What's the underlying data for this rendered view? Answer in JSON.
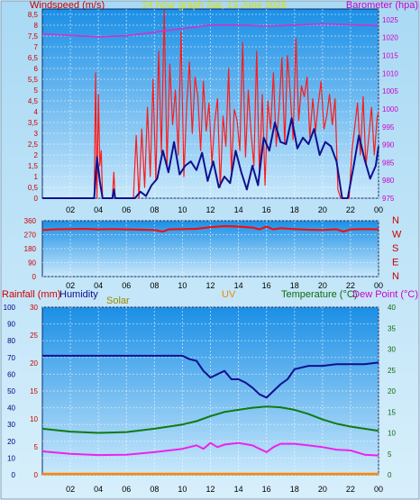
{
  "chart_data": [
    {
      "type": "line",
      "title": "24 hour graph Sat, 13 June 2026",
      "ylabel_left": "Windspeed (m/s)",
      "ylabel_right": "Barometer (hpa)",
      "x_ticks": [
        "02",
        "04",
        "06",
        "08",
        "10",
        "12",
        "14",
        "16",
        "18",
        "20",
        "22",
        "00"
      ],
      "y_left_ticks": [
        "0",
        "0,5",
        "1",
        "1,5",
        "2",
        "2,5",
        "3",
        "3,5",
        "4",
        "4,5",
        "5",
        "5,5",
        "6",
        "6,5",
        "7",
        "7,5",
        "8",
        "8,5"
      ],
      "y_right_ticks": [
        "975",
        "980",
        "985",
        "990",
        "995",
        "1000",
        "1005",
        "1010",
        "1015",
        "1020",
        "1025"
      ],
      "ylim_left": [
        0,
        8.75
      ],
      "ylim_right": [
        975,
        1028
      ],
      "colors": {
        "gust": "#ff1a1a",
        "average": "#101090",
        "barometer": "#cc33cc"
      },
      "series": [
        {
          "key": "barometer",
          "axis": "right",
          "x": [
            0,
            2,
            4,
            6,
            8,
            10,
            12,
            14,
            16,
            18,
            20,
            22,
            24
          ],
          "values": [
            1021,
            1020.6,
            1020.2,
            1020.5,
            1021.5,
            1022.5,
            1023.5,
            1023.5,
            1023.2,
            1023.5,
            1023.8,
            1023.6,
            1023.3
          ]
        },
        {
          "key": "average",
          "axis": "left",
          "x": [
            0,
            3.7,
            3.9,
            4.1,
            4.3,
            5.0,
            5.1,
            5.2,
            6.6,
            7.0,
            7.4,
            7.8,
            8.2,
            8.6,
            9.0,
            9.4,
            9.8,
            10.2,
            10.6,
            11.0,
            11.4,
            11.8,
            12.2,
            12.6,
            13.0,
            13.4,
            13.8,
            14.2,
            14.6,
            15.0,
            15.4,
            15.8,
            16.2,
            16.6,
            17.0,
            17.4,
            17.8,
            18.2,
            18.6,
            19.0,
            19.4,
            19.8,
            20.2,
            20.6,
            21.0,
            21.4,
            21.8,
            22.2,
            22.6,
            23.0,
            23.4,
            23.8,
            24.0
          ],
          "values": [
            0,
            0,
            1.9,
            0.8,
            0,
            0,
            0.4,
            0,
            0,
            0.3,
            0.1,
            0.6,
            0.9,
            2.2,
            1.2,
            2.6,
            1.1,
            1.5,
            1.7,
            1.3,
            2.1,
            0.8,
            1.7,
            0.5,
            1.0,
            0.7,
            2.2,
            1.2,
            0.4,
            1.5,
            0.6,
            2.8,
            2.2,
            3.5,
            2.6,
            2.5,
            3.7,
            2.3,
            2.8,
            2.5,
            3.2,
            2.0,
            2.6,
            2.4,
            1.7,
            0,
            0,
            1.4,
            2.9,
            1.8,
            0.9,
            1.5,
            2.4
          ]
        },
        {
          "key": "gust",
          "axis": "left",
          "x": [
            0,
            3.7,
            3.8,
            3.9,
            4.0,
            4.1,
            4.2,
            4.3,
            5.0,
            5.1,
            5.2,
            5.3,
            6.5,
            6.7,
            6.9,
            7.1,
            7.3,
            7.5,
            7.7,
            7.9,
            8.1,
            8.3,
            8.5,
            8.7,
            8.9,
            9.1,
            9.3,
            9.5,
            9.7,
            9.9,
            10.1,
            10.3,
            10.5,
            10.7,
            10.9,
            11.1,
            11.3,
            11.5,
            11.7,
            11.9,
            12.1,
            12.3,
            12.5,
            12.7,
            12.9,
            13.1,
            13.3,
            13.5,
            13.7,
            13.9,
            14.1,
            14.3,
            14.5,
            14.7,
            14.9,
            15.1,
            15.3,
            15.5,
            15.7,
            15.9,
            16.1,
            16.3,
            16.5,
            16.7,
            16.9,
            17.1,
            17.3,
            17.5,
            17.7,
            17.9,
            18.1,
            18.3,
            18.5,
            18.7,
            18.9,
            19.1,
            19.3,
            19.5,
            19.7,
            19.9,
            20.1,
            20.3,
            20.5,
            20.7,
            20.9,
            21.1,
            21.3,
            21.5,
            21.7,
            21.9,
            22.1,
            22.3,
            22.5,
            22.7,
            22.9,
            23.1,
            23.3,
            23.5,
            23.7,
            23.9,
            24.0
          ],
          "values": [
            0,
            0,
            5.8,
            0,
            4.8,
            1.5,
            2.2,
            0,
            0,
            1.2,
            0,
            0,
            0,
            2.9,
            0,
            3.2,
            0.5,
            4.2,
            1.0,
            5.5,
            0.8,
            6.8,
            2.1,
            8.7,
            1.5,
            6.2,
            3.4,
            5.0,
            2.0,
            7.7,
            1.0,
            4.2,
            6.3,
            3.0,
            5.6,
            4.7,
            2.2,
            5.4,
            3.1,
            4.4,
            1.6,
            3.5,
            4.6,
            0.5,
            3.8,
            2.4,
            6.0,
            1.2,
            4.1,
            3.6,
            2.2,
            7.2,
            1.9,
            5.0,
            3.0,
            1.5,
            6.8,
            1.0,
            4.8,
            0.6,
            4.5,
            3.2,
            5.8,
            2.4,
            4.2,
            6.5,
            2.5,
            6.6,
            4.8,
            2.7,
            7.4,
            3.6,
            5.2,
            4.7,
            5.6,
            2.8,
            4.6,
            3.1,
            4.4,
            5.4,
            3.2,
            3.8,
            4.8,
            3.4,
            4.6,
            0.4,
            0,
            0,
            0,
            0,
            2.2,
            3.3,
            4.4,
            2.0,
            4.7,
            1.5,
            2.8,
            4.2,
            2.0,
            3.7,
            4.0
          ]
        }
      ]
    },
    {
      "type": "line",
      "title": "",
      "x_ticks": [
        "02",
        "04",
        "06",
        "08",
        "10",
        "12",
        "14",
        "16",
        "18",
        "20",
        "22",
        "00"
      ],
      "y_left_ticks": [
        "0",
        "90",
        "180",
        "270",
        "360"
      ],
      "y_right_labels": [
        "N",
        "W",
        "S",
        "E",
        "N"
      ],
      "ylim": [
        0,
        360
      ],
      "colors": {
        "direction": "#ee1111"
      },
      "series": [
        {
          "key": "direction",
          "x": [
            0,
            1,
            2,
            3,
            4,
            5,
            6,
            7,
            8,
            8.6,
            9,
            10,
            11,
            12,
            13,
            14,
            15,
            15.5,
            16,
            16.5,
            17,
            18,
            19,
            20,
            21,
            21.5,
            22,
            23,
            24
          ],
          "values": [
            300,
            305,
            306,
            308,
            304,
            306,
            304,
            302,
            300,
            290,
            304,
            306,
            308,
            318,
            325,
            322,
            316,
            304,
            322,
            304,
            312,
            306,
            302,
            300,
            305,
            290,
            304,
            306,
            304
          ]
        }
      ]
    },
    {
      "type": "line",
      "title": "",
      "legend": [
        "Rainfall (mm)",
        "Humidity",
        "Solar",
        "UV",
        "Temperature (°C)",
        "Dew Point (°C)"
      ],
      "x_ticks": [
        "02",
        "04",
        "06",
        "08",
        "10",
        "12",
        "14",
        "16",
        "18",
        "20",
        "22",
        "00"
      ],
      "y_humidity_ticks": [
        "0",
        "10",
        "20",
        "30",
        "40",
        "50",
        "60",
        "70",
        "80",
        "90",
        "100"
      ],
      "y_rain_ticks": [
        "0",
        "5",
        "10",
        "15",
        "20",
        "25",
        "30"
      ],
      "y_temp_ticks": [
        "0",
        "5",
        "10",
        "15",
        "20",
        "25",
        "30",
        "35",
        "40"
      ],
      "ylim_humidity": [
        0,
        100
      ],
      "ylim_temp": [
        0,
        40
      ],
      "colors": {
        "humidity": "#101090",
        "temperature": "#107a10",
        "dewpoint": "#ee22ee",
        "rainfall": "#ff3333",
        "legend_rain": "#cc0000",
        "legend_humidity": "#101090",
        "legend_solar": "#998800",
        "legend_uv": "#ee8800",
        "legend_temp": "#0b6b0b",
        "legend_dew": "#cc00cc"
      },
      "series": [
        {
          "key": "humidity",
          "axis": "humidity",
          "x": [
            0,
            2,
            4,
            6,
            8,
            10,
            10.5,
            11,
            11.5,
            12,
            12.5,
            13,
            13.5,
            14,
            14.5,
            15,
            15.5,
            16,
            16.5,
            17,
            17.5,
            18,
            19,
            20,
            21,
            22,
            23,
            24
          ],
          "values": [
            71,
            71,
            71,
            71,
            71,
            71,
            69,
            68,
            62,
            58,
            60,
            62,
            57,
            57,
            55,
            52,
            48,
            46,
            50,
            54,
            57,
            63,
            65,
            65,
            66,
            66,
            66,
            67
          ]
        },
        {
          "key": "temperature",
          "axis": "temp",
          "x": [
            0,
            2,
            4,
            6,
            8,
            10,
            11,
            12,
            13,
            14,
            15,
            16,
            17,
            18,
            19,
            20,
            21,
            22,
            23,
            24
          ],
          "values": [
            11,
            10.3,
            10,
            10.2,
            11,
            12,
            12.8,
            14,
            15,
            15.5,
            16,
            16.3,
            16.1,
            15.5,
            14.5,
            13.2,
            12.2,
            11.5,
            11,
            10.5
          ]
        },
        {
          "key": "dewpoint",
          "axis": "temp",
          "x": [
            0,
            2,
            4,
            6,
            8,
            10,
            11,
            11.5,
            12,
            12.5,
            13,
            14,
            15,
            15.5,
            16,
            16.5,
            17,
            18,
            19,
            20,
            21,
            22,
            23,
            24
          ],
          "values": [
            5.6,
            5,
            4.7,
            4.8,
            5.4,
            6.2,
            7.0,
            6.2,
            7.6,
            6.6,
            7.2,
            7.6,
            7.0,
            6.2,
            5.4,
            6.6,
            7.4,
            7.4,
            7.0,
            6.6,
            6.0,
            5.8,
            4.8,
            4.6
          ]
        },
        {
          "key": "rainfall",
          "axis": "rain",
          "x": [
            0,
            24
          ],
          "values": [
            0,
            0
          ]
        }
      ]
    }
  ]
}
